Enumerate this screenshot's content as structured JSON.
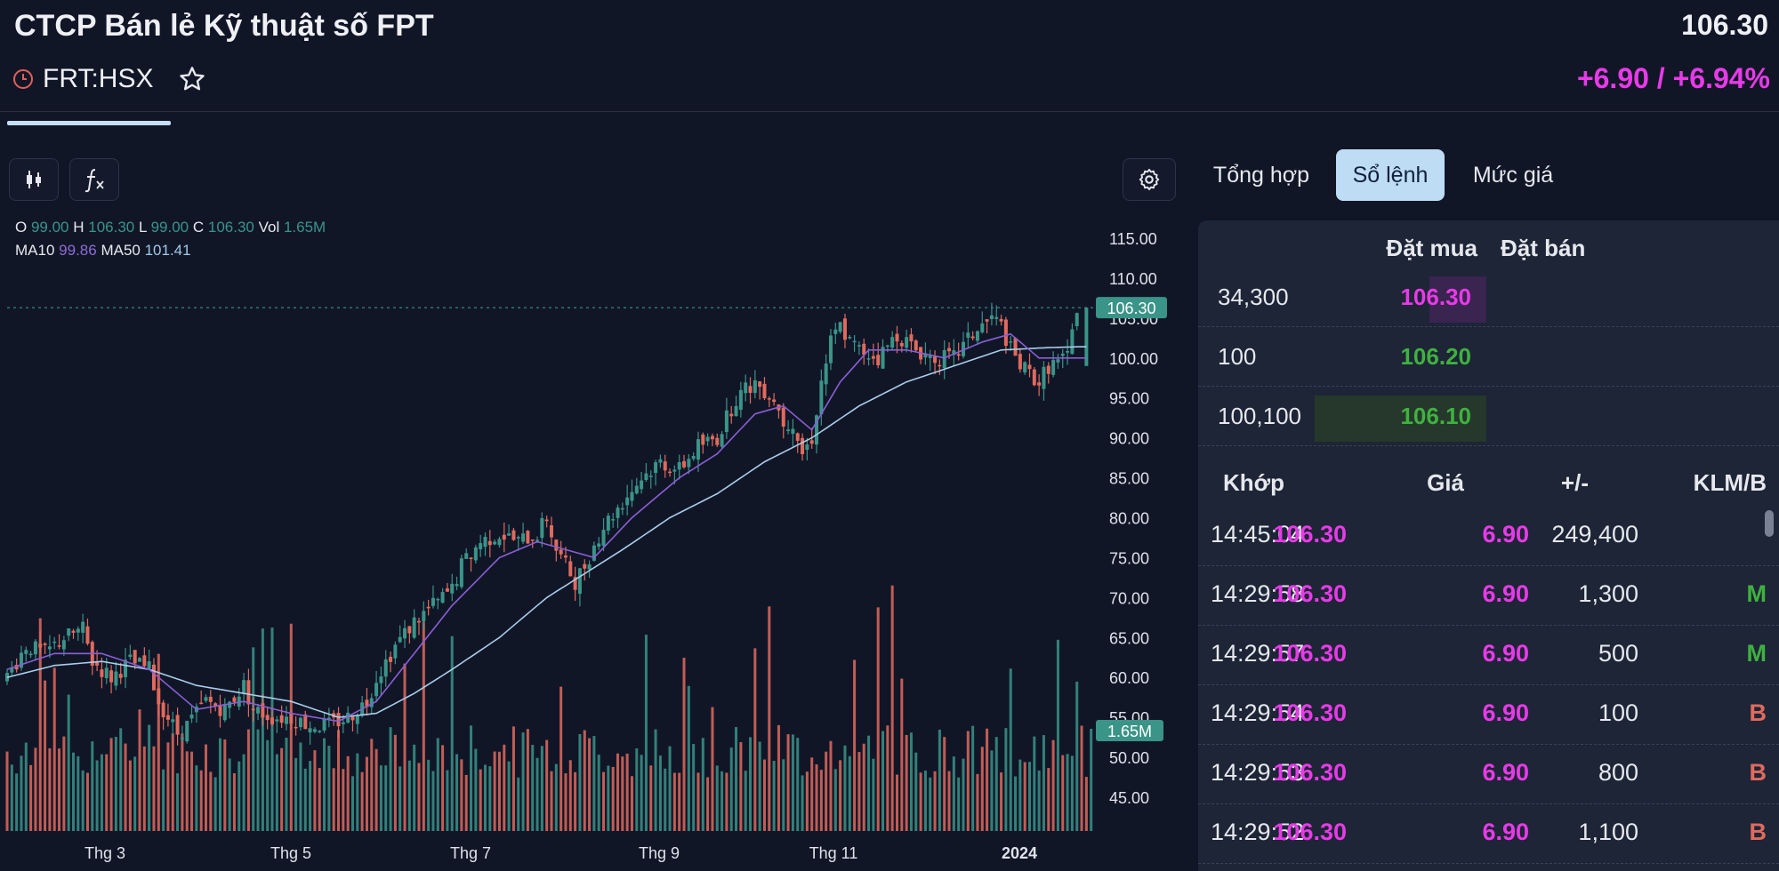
{
  "header": {
    "company_name": "CTCP Bán lẻ Kỹ thuật số FPT",
    "ticker": "FRT:HSX",
    "last_price": "106.30",
    "change": "+6.90 / +6.94%"
  },
  "colors": {
    "up": "#3a9488",
    "down": "#e06a5e",
    "ma10": "#8a5fd6",
    "ma50": "#a9cdea",
    "magenta": "#e83ae8",
    "green": "#3fb13f",
    "accent_tab": "#bfdcf5"
  },
  "icons": {
    "clock": "clock-icon",
    "star": "star-icon",
    "candles": "candlestick-icon",
    "function": "function-icon",
    "settings": "gear-icon"
  },
  "legend": {
    "o_label": "O",
    "o": "99.00",
    "h_label": "H",
    "h": "106.30",
    "l_label": "L",
    "l": "99.00",
    "c_label": "C",
    "c": "106.30",
    "vol_label": "Vol",
    "vol": "1.65M",
    "ma10_label": "MA10",
    "ma10": "99.86",
    "ma50_label": "MA50",
    "ma50": "101.41"
  },
  "chart_data": {
    "type": "candlestick",
    "y_ticks": [
      "115.00",
      "110.00",
      "105.00",
      "100.00",
      "95.00",
      "90.00",
      "85.00",
      "80.00",
      "75.00",
      "70.00",
      "65.00",
      "60.00",
      "55.00",
      "50.00",
      "45.00"
    ],
    "ylim": [
      41,
      117
    ],
    "x_ticks": [
      "Thg 3",
      "Thg 5",
      "Thg 7",
      "Thg 9",
      "Thg 11",
      "2024"
    ],
    "last_price_label": "106.30",
    "last_price": 106.3,
    "volume_label": "1.65M",
    "close_path": [
      [
        0,
        60
      ],
      [
        4,
        64
      ],
      [
        8,
        63
      ],
      [
        12,
        65
      ],
      [
        16,
        66
      ],
      [
        18,
        62
      ],
      [
        22,
        60
      ],
      [
        26,
        62
      ],
      [
        30,
        61
      ],
      [
        32,
        57
      ],
      [
        36,
        53
      ],
      [
        38,
        54
      ],
      [
        42,
        57
      ],
      [
        46,
        56
      ],
      [
        50,
        59
      ],
      [
        52,
        56
      ],
      [
        56,
        55
      ],
      [
        60,
        55
      ],
      [
        64,
        54
      ],
      [
        68,
        54
      ],
      [
        72,
        55
      ],
      [
        76,
        57
      ],
      [
        78,
        60
      ],
      [
        82,
        64
      ],
      [
        86,
        67
      ],
      [
        90,
        69
      ],
      [
        94,
        71
      ],
      [
        96,
        74
      ],
      [
        100,
        77
      ],
      [
        104,
        78
      ],
      [
        108,
        77
      ],
      [
        112,
        78
      ],
      [
        114,
        80
      ],
      [
        116,
        76
      ],
      [
        118,
        74
      ],
      [
        120,
        72
      ],
      [
        122,
        74
      ],
      [
        126,
        79
      ],
      [
        130,
        82
      ],
      [
        134,
        85
      ],
      [
        138,
        87
      ],
      [
        142,
        86
      ],
      [
        146,
        89
      ],
      [
        150,
        90
      ],
      [
        154,
        95
      ],
      [
        158,
        97
      ],
      [
        162,
        95
      ],
      [
        164,
        92
      ],
      [
        166,
        92
      ],
      [
        168,
        88
      ],
      [
        170,
        90
      ],
      [
        172,
        97
      ],
      [
        174,
        102
      ],
      [
        176,
        104
      ],
      [
        178,
        102
      ],
      [
        180,
        101
      ],
      [
        184,
        100
      ],
      [
        188,
        103
      ],
      [
        192,
        101
      ],
      [
        196,
        100
      ],
      [
        200,
        100
      ],
      [
        204,
        103
      ],
      [
        208,
        105
      ],
      [
        210,
        104
      ],
      [
        212,
        101
      ],
      [
        214,
        99
      ],
      [
        216,
        98
      ],
      [
        218,
        97
      ],
      [
        220,
        99
      ],
      [
        224,
        100
      ],
      [
        226,
        106.3
      ]
    ],
    "ma10_path": [
      [
        0,
        61
      ],
      [
        10,
        63
      ],
      [
        20,
        63
      ],
      [
        30,
        61
      ],
      [
        40,
        56
      ],
      [
        50,
        57
      ],
      [
        60,
        55.5
      ],
      [
        70,
        54.5
      ],
      [
        78,
        57
      ],
      [
        86,
        63
      ],
      [
        94,
        69
      ],
      [
        104,
        75
      ],
      [
        112,
        77
      ],
      [
        118,
        76
      ],
      [
        124,
        75
      ],
      [
        132,
        80
      ],
      [
        142,
        85
      ],
      [
        150,
        88
      ],
      [
        158,
        93
      ],
      [
        164,
        94
      ],
      [
        170,
        91
      ],
      [
        176,
        97
      ],
      [
        182,
        101
      ],
      [
        190,
        101
      ],
      [
        198,
        100
      ],
      [
        206,
        102
      ],
      [
        212,
        103
      ],
      [
        218,
        100
      ],
      [
        226,
        100
      ]
    ],
    "ma50_path": [
      [
        0,
        60
      ],
      [
        10,
        61.5
      ],
      [
        20,
        62
      ],
      [
        30,
        61
      ],
      [
        40,
        59
      ],
      [
        50,
        58
      ],
      [
        60,
        57
      ],
      [
        70,
        55
      ],
      [
        78,
        55.5
      ],
      [
        86,
        58
      ],
      [
        94,
        61
      ],
      [
        104,
        65
      ],
      [
        114,
        70
      ],
      [
        122,
        73
      ],
      [
        130,
        76
      ],
      [
        140,
        80
      ],
      [
        150,
        83
      ],
      [
        160,
        87
      ],
      [
        170,
        90
      ],
      [
        180,
        94
      ],
      [
        190,
        97
      ],
      [
        200,
        99
      ],
      [
        210,
        101
      ],
      [
        220,
        101.3
      ],
      [
        226,
        101.4
      ]
    ]
  },
  "tabs": [
    {
      "label": "Tổng hợp"
    },
    {
      "label": "Sổ lệnh"
    },
    {
      "label": "Mức giá"
    }
  ],
  "orderbook": {
    "bid_header": "Đặt mua",
    "ask_header": "Đặt bán",
    "rows": [
      {
        "volume": "34,300",
        "price": "106.30",
        "fill": 0.33
      },
      {
        "volume": "100",
        "price": "106.20",
        "fill": 0
      },
      {
        "volume": "100,100",
        "price": "106.10",
        "fill": 1.0
      }
    ]
  },
  "trades": {
    "headers": {
      "time": "Khớp",
      "price": "Giá",
      "change": "+/-",
      "volume": "KLM/B"
    },
    "rows": [
      {
        "time": "14:45:04",
        "price": "106.30",
        "change": "6.90",
        "volume": "249,400",
        "side": ""
      },
      {
        "time": "14:29:58",
        "price": "106.30",
        "change": "6.90",
        "volume": "1,300",
        "side": "M"
      },
      {
        "time": "14:29:57",
        "price": "106.30",
        "change": "6.90",
        "volume": "500",
        "side": "M"
      },
      {
        "time": "14:29:54",
        "price": "106.30",
        "change": "6.90",
        "volume": "100",
        "side": "B"
      },
      {
        "time": "14:29:53",
        "price": "106.30",
        "change": "6.90",
        "volume": "800",
        "side": "B"
      },
      {
        "time": "14:29:52",
        "price": "106.30",
        "change": "6.90",
        "volume": "1,100",
        "side": "B"
      }
    ]
  }
}
